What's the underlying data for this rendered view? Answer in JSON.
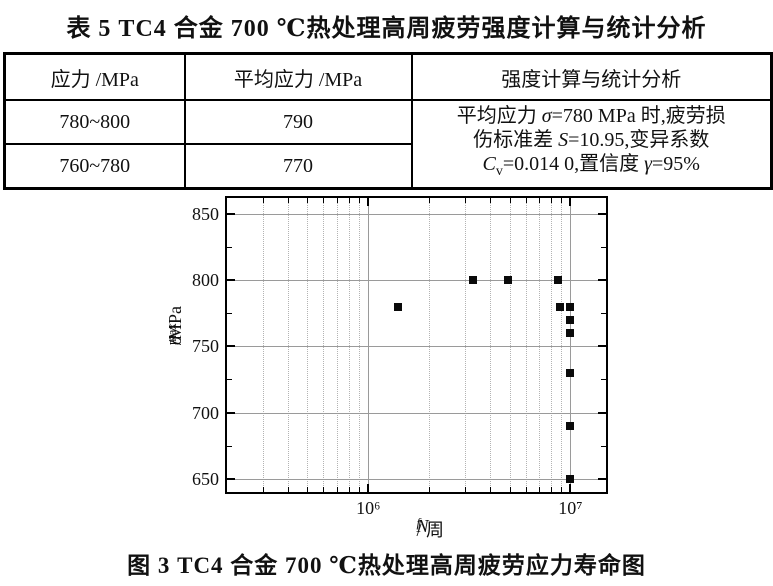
{
  "table_title": "表 5   TC4 合金 700 ℃热处理高周疲劳强度计算与统计分析",
  "figure_caption": "图 3   TC4 合金 700 ℃热处理高周疲劳应力寿命图",
  "table": {
    "headers": [
      "应力 /MPa",
      "平均应力 /MPa",
      "强度计算与统计分析"
    ],
    "rows": [
      [
        "780~800",
        "790"
      ],
      [
        "760~780",
        "770"
      ]
    ],
    "analysis_lines": [
      [
        {
          "t": "平均应力 "
        },
        {
          "t": "σ",
          "i": true
        },
        {
          "t": "=780 MPa 时,疲劳损"
        }
      ],
      [
        {
          "t": "伤标准差 "
        },
        {
          "t": "S",
          "i": true
        },
        {
          "t": "=10.95,变异系数"
        }
      ],
      [
        {
          "t": "C",
          "i": true
        },
        {
          "t": "v",
          "sub": true
        },
        {
          "t": "=0.014 0,置信度 "
        },
        {
          "t": "γ",
          "i": true
        },
        {
          "t": "=95%"
        }
      ]
    ]
  },
  "chart_data": {
    "type": "scatter",
    "title": "",
    "x_scale": "log",
    "xlim": [
      200000,
      15000000
    ],
    "ylim": [
      640,
      862
    ],
    "xlabel_segments": [
      {
        "t": "N",
        "i": true
      },
      {
        "t": "f",
        "i": true,
        "sub": true
      },
      {
        "t": "/ 周"
      }
    ],
    "ylabel_segments": [
      {
        "t": "σ",
        "i": true
      },
      {
        "t": "max",
        "sub": true
      },
      {
        "t": "/MPa"
      }
    ],
    "x_major_ticks": [
      {
        "value": 1000000,
        "label": "10⁶"
      },
      {
        "value": 10000000,
        "label": "10⁷"
      }
    ],
    "y_major_ticks": [
      650,
      700,
      750,
      800,
      850
    ],
    "y_minor_step": 25,
    "grid": {
      "x_major": "solid",
      "x_minor": "dotted",
      "y_major": "solid",
      "major_color": "#9a9a9a",
      "minor_color": "#b3b3b3"
    },
    "legend": null,
    "series": [
      {
        "name": "fatigue-test-points",
        "marker": "square",
        "color": "#0a0a0a",
        "points": [
          [
            1400000,
            780
          ],
          [
            3300000,
            800
          ],
          [
            4900000,
            800
          ],
          [
            8700000,
            800
          ],
          [
            8900000,
            780
          ],
          [
            10000000,
            780
          ],
          [
            10000000,
            770
          ],
          [
            10000000,
            760
          ],
          [
            10000000,
            730
          ],
          [
            10000000,
            690
          ],
          [
            10000000,
            650
          ]
        ]
      }
    ]
  }
}
